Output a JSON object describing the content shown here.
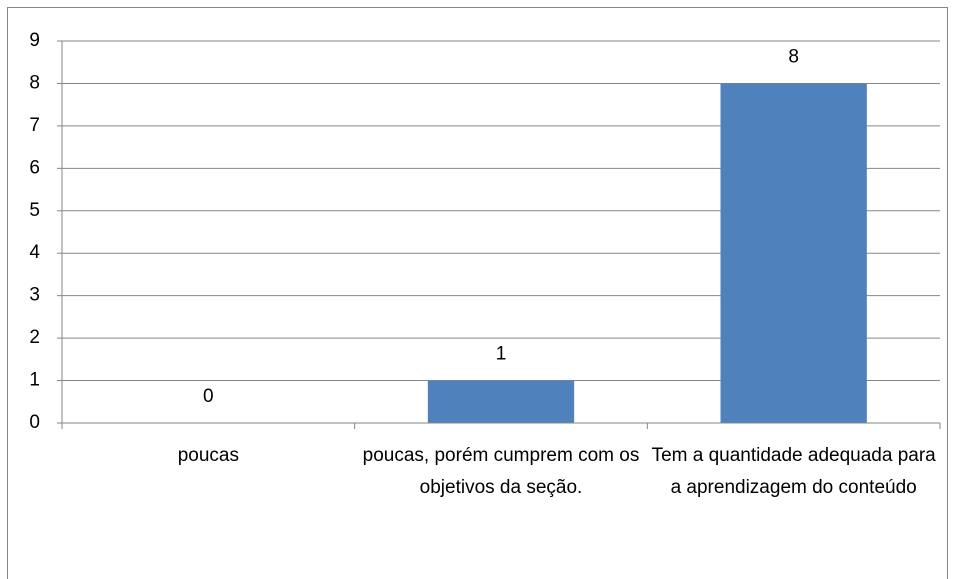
{
  "chart_data": {
    "type": "bar",
    "categories": [
      "poucas",
      "poucas, porém cumprem com os objetivos da seção.",
      "Tem a quantidade adequada para a aprendizagem do conteúdo"
    ],
    "values": [
      0,
      1,
      8
    ],
    "color": "#4f81bd",
    "ylim": [
      0,
      9
    ],
    "yticks": [
      0,
      1,
      2,
      3,
      4,
      5,
      6,
      7,
      8,
      9
    ],
    "grid": true
  }
}
